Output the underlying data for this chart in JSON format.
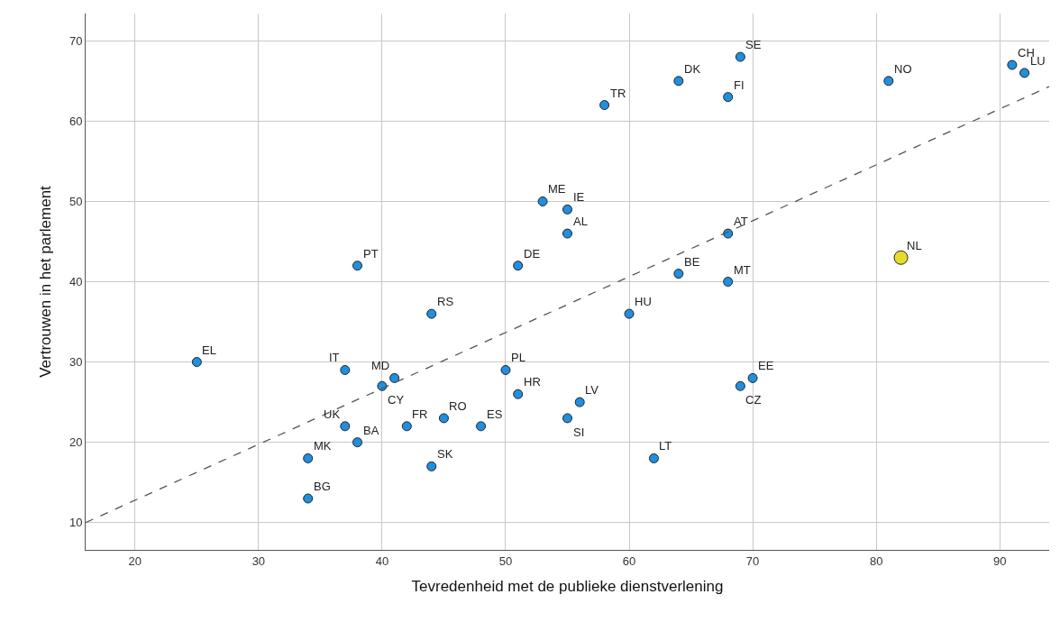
{
  "chart_data": {
    "type": "scatter",
    "xlabel": "Tevredenheid met de publieke dienstverlening",
    "ylabel": "Vertrouwen in het parlement",
    "xlim": [
      16,
      94
    ],
    "ylim": [
      6.6,
      73.4
    ],
    "xticks": [
      20,
      30,
      40,
      50,
      60,
      70,
      80,
      90
    ],
    "yticks": [
      10,
      20,
      30,
      40,
      50,
      60,
      70
    ],
    "grid": true,
    "marker": "circle",
    "series": [
      {
        "color": "#1f8fe0",
        "x": [
          69,
          64,
          68,
          58,
          81,
          91,
          92,
          53,
          55,
          55,
          68,
          38,
          51,
          64,
          68,
          44,
          60,
          25,
          37,
          50,
          41,
          70,
          40,
          69,
          51,
          56,
          45,
          55,
          37,
          42,
          48,
          38,
          34,
          62,
          44,
          34
        ],
        "values": [
          68,
          65,
          63,
          62,
          65,
          67,
          66,
          50,
          49,
          46,
          46,
          42,
          42,
          41,
          40,
          36,
          36,
          30,
          29,
          29,
          28,
          28,
          27,
          27,
          26,
          25,
          23,
          23,
          22,
          22,
          22,
          20,
          18,
          18,
          17,
          13
        ]
      },
      {
        "color": "#e8dc2a",
        "x": [
          82
        ],
        "values": [
          43
        ]
      },
      {
        "type": "line",
        "color": "#555555",
        "line_style": "dashed",
        "marker": "none",
        "x": [
          16,
          94
        ],
        "values": [
          10,
          64.3
        ]
      }
    ],
    "annotations": [
      {
        "text": "SE",
        "x": 69,
        "y": 68
      },
      {
        "text": "DK",
        "x": 64,
        "y": 65
      },
      {
        "text": "FI",
        "x": 68,
        "y": 63
      },
      {
        "text": "TR",
        "x": 58,
        "y": 62
      },
      {
        "text": "NO",
        "x": 81,
        "y": 65
      },
      {
        "text": "CH",
        "x": 91,
        "y": 67
      },
      {
        "text": "LU",
        "x": 92,
        "y": 66
      },
      {
        "text": "ME",
        "x": 53,
        "y": 50
      },
      {
        "text": "IE",
        "x": 55,
        "y": 49
      },
      {
        "text": "AL",
        "x": 55,
        "y": 46
      },
      {
        "text": "AT",
        "x": 68,
        "y": 46
      },
      {
        "text": "PT",
        "x": 38,
        "y": 42
      },
      {
        "text": "DE",
        "x": 51,
        "y": 42
      },
      {
        "text": "BE",
        "x": 64,
        "y": 41
      },
      {
        "text": "MT",
        "x": 68,
        "y": 40
      },
      {
        "text": "RS",
        "x": 44,
        "y": 36
      },
      {
        "text": "HU",
        "x": 60,
        "y": 36
      },
      {
        "text": "EL",
        "x": 25,
        "y": 30
      },
      {
        "text": "IT",
        "x": 37,
        "y": 29
      },
      {
        "text": "PL",
        "x": 50,
        "y": 29
      },
      {
        "text": "MD",
        "x": 41,
        "y": 28
      },
      {
        "text": "EE",
        "x": 70,
        "y": 28
      },
      {
        "text": "CY",
        "x": 40,
        "y": 27
      },
      {
        "text": "CZ",
        "x": 69,
        "y": 27
      },
      {
        "text": "HR",
        "x": 51,
        "y": 26
      },
      {
        "text": "LV",
        "x": 56,
        "y": 25
      },
      {
        "text": "RO",
        "x": 45,
        "y": 23
      },
      {
        "text": "SI",
        "x": 55,
        "y": 23
      },
      {
        "text": "UK",
        "x": 37,
        "y": 22
      },
      {
        "text": "FR",
        "x": 42,
        "y": 22
      },
      {
        "text": "ES",
        "x": 48,
        "y": 22
      },
      {
        "text": "BA",
        "x": 38,
        "y": 20
      },
      {
        "text": "MK",
        "x": 34,
        "y": 18
      },
      {
        "text": "LT",
        "x": 62,
        "y": 18
      },
      {
        "text": "SK",
        "x": 44,
        "y": 17
      },
      {
        "text": "BG",
        "x": 34,
        "y": 13
      },
      {
        "text": "NL",
        "x": 82,
        "y": 43
      }
    ]
  }
}
